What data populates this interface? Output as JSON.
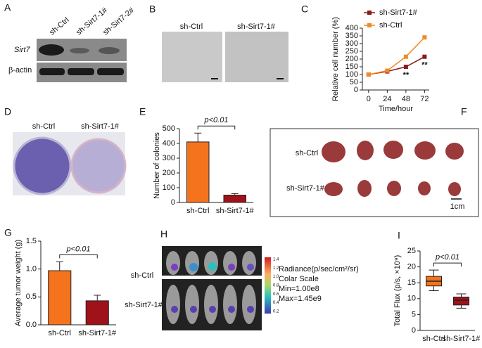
{
  "panel_letters": [
    "A",
    "B",
    "C",
    "D",
    "E",
    "F",
    "G",
    "H",
    "I"
  ],
  "blot": {
    "lanes": [
      "sh-Ctrl",
      "sh-Sirt7-1#",
      "sh-Sirt7-2#"
    ],
    "rows": [
      "Sirt7",
      "β-actin"
    ]
  },
  "cell_images": {
    "labels": [
      "sh-Ctrl",
      "sh-Sirt7-1#"
    ]
  },
  "colony_images": {
    "labels": [
      "sh-Ctrl",
      "sh-Sirt7-1#"
    ]
  },
  "tumor_images": {
    "labels": [
      "sh-Ctrl",
      "sh-Sirt7-1#"
    ],
    "scale_bar": "1cm"
  },
  "imaging": {
    "labels": [
      "sh-Ctrl",
      "sh-Sirt7-1#"
    ],
    "colorbar_ticks": [
      "1.4",
      "1.2",
      "1.0",
      "0.8",
      "0.6",
      "0.4",
      "0.2"
    ],
    "legend_lines": [
      "Radiance(p/sec/cm²/sr)",
      "Colar Scale",
      "Min=1.00e8",
      "Max=1.45e9"
    ]
  },
  "chart_data": [
    {
      "type": "line",
      "y_label": "Relative cell number (%)",
      "x_label": "Time/hour",
      "x": [
        0,
        24,
        48,
        72
      ],
      "xlim": [
        -8,
        78
      ],
      "xticks": [
        0,
        24,
        48,
        72
      ],
      "ylim": [
        0,
        400
      ],
      "yticks": [
        0,
        50,
        100,
        150,
        200,
        250,
        300,
        350,
        400
      ],
      "legend": "upper left",
      "series": [
        {
          "name": "sh-Sirt7-1#",
          "color": "#8b1a1a",
          "values": [
            100,
            120,
            150,
            215
          ]
        },
        {
          "name": "sh-Ctrl",
          "color": "#f08a24",
          "values": [
            100,
            125,
            215,
            340
          ]
        }
      ],
      "annotations": [
        "**",
        "**"
      ]
    },
    {
      "type": "bar",
      "y_label": "Number of colonies",
      "categories": [
        "sh-Ctrl",
        "sh-Sirt7-1#"
      ],
      "values": [
        410,
        50
      ],
      "errors": [
        60,
        10
      ],
      "colors": [
        "#f5731c",
        "#a0121a"
      ],
      "ylim": [
        0,
        500
      ],
      "yticks": [
        0,
        100,
        200,
        300,
        400,
        500
      ],
      "annotation": "p<0.01"
    },
    {
      "type": "bar",
      "y_label": "Average tumor weight (g)",
      "categories": [
        "sh-Ctrl",
        "sh-Sirt7-1#"
      ],
      "values": [
        0.97,
        0.43
      ],
      "errors": [
        0.16,
        0.1
      ],
      "colors": [
        "#f5731c",
        "#a0121a"
      ],
      "ylim": [
        0,
        1.5
      ],
      "yticks": [
        {
          "value": 0,
          "label": "0.0"
        },
        0.5,
        {
          "value": 1,
          "label": "1.0"
        },
        1.5
      ],
      "annotation": "p<0.01"
    },
    {
      "type": "box",
      "y_label": "Total Flux (p/s, ×10⁹)",
      "categories": [
        "sh-Ctrl",
        "sh-Sirt7-1#"
      ],
      "boxes": [
        {
          "min": 12.5,
          "q1": 14,
          "median": 15.5,
          "q3": 17,
          "max": 19
        },
        {
          "min": 7,
          "q1": 8,
          "median": 9.5,
          "q3": 10.5,
          "max": 11.5
        }
      ],
      "colors": [
        "#f5731c",
        "#a0121a"
      ],
      "ylim": [
        0,
        25
      ],
      "yticks": [
        0,
        5,
        10,
        15,
        20,
        25
      ],
      "annotation": "p<0.01"
    }
  ]
}
